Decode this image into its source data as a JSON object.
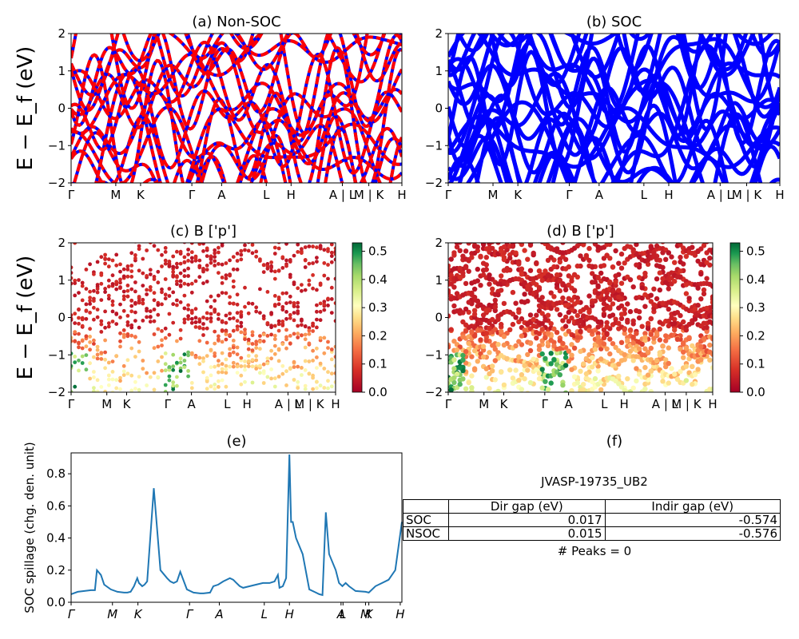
{
  "chart_data": [
    {
      "id": "a",
      "type": "line",
      "title": "(a) Non-SOC",
      "ylabel": "E − E_f (eV)",
      "ylim": [
        -2,
        2
      ],
      "xlim": [
        0,
        1
      ],
      "yticks": [
        -2,
        -1,
        0,
        1,
        2
      ],
      "xtick_labels": [
        {
          "pos": 0.0,
          "label": "Γ"
        },
        {
          "pos": 0.135,
          "label": "M"
        },
        {
          "pos": 0.21,
          "label": "K"
        },
        {
          "pos": 0.365,
          "label": "Γ"
        },
        {
          "pos": 0.455,
          "label": "A"
        },
        {
          "pos": 0.59,
          "label": "L"
        },
        {
          "pos": 0.665,
          "label": "H"
        },
        {
          "pos": 0.82,
          "label": "A | L"
        },
        {
          "pos": 0.9,
          "label": "M | K"
        },
        {
          "pos": 1.0,
          "label": "H"
        }
      ],
      "line_colors": [
        "#0000ff",
        "#ff0000"
      ],
      "line_style": "red dashed over blue"
    },
    {
      "id": "b",
      "type": "line",
      "title": "(b) SOC",
      "ylim": [
        -2,
        2
      ],
      "xlim": [
        0,
        1
      ],
      "yticks": [
        -2,
        -1,
        0,
        1,
        2
      ],
      "xtick_labels": [
        {
          "pos": 0.0,
          "label": "Γ"
        },
        {
          "pos": 0.135,
          "label": "M"
        },
        {
          "pos": 0.21,
          "label": "K"
        },
        {
          "pos": 0.365,
          "label": "Γ"
        },
        {
          "pos": 0.455,
          "label": "A"
        },
        {
          "pos": 0.59,
          "label": "L"
        },
        {
          "pos": 0.665,
          "label": "H"
        },
        {
          "pos": 0.82,
          "label": "A | L"
        },
        {
          "pos": 0.9,
          "label": "M | K"
        },
        {
          "pos": 1.0,
          "label": "H"
        }
      ],
      "line_colors": [
        "#0000ff"
      ]
    },
    {
      "id": "c",
      "type": "scatter",
      "title": "(c)  B ['p']",
      "ylabel": "E − E_f (eV)",
      "ylim": [
        -2,
        2
      ],
      "xlim": [
        0,
        1
      ],
      "yticks": [
        -2,
        -1,
        0,
        1,
        2
      ],
      "xtick_labels": [
        {
          "pos": 0.0,
          "label": "Γ"
        },
        {
          "pos": 0.135,
          "label": "M"
        },
        {
          "pos": 0.21,
          "label": "K"
        },
        {
          "pos": 0.365,
          "label": "Γ"
        },
        {
          "pos": 0.455,
          "label": "A"
        },
        {
          "pos": 0.59,
          "label": "L"
        },
        {
          "pos": 0.665,
          "label": "H"
        },
        {
          "pos": 0.82,
          "label": "A | L"
        },
        {
          "pos": 0.9,
          "label": "M | K"
        },
        {
          "pos": 1.0,
          "label": "H"
        }
      ],
      "colorbar": {
        "range": [
          0,
          0.53
        ],
        "ticks": [
          "0.0",
          "0.1",
          "0.2",
          "0.3",
          "0.4",
          "0.5"
        ],
        "colormap": "RdYlGn"
      }
    },
    {
      "id": "d",
      "type": "scatter",
      "title": "(d) B ['p']",
      "ylim": [
        -2,
        2
      ],
      "xlim": [
        0,
        1
      ],
      "yticks": [
        -2,
        -1,
        0,
        1,
        2
      ],
      "xtick_labels": [
        {
          "pos": 0.0,
          "label": "Γ"
        },
        {
          "pos": 0.135,
          "label": "M"
        },
        {
          "pos": 0.21,
          "label": "K"
        },
        {
          "pos": 0.365,
          "label": "Γ"
        },
        {
          "pos": 0.455,
          "label": "A"
        },
        {
          "pos": 0.59,
          "label": "L"
        },
        {
          "pos": 0.665,
          "label": "H"
        },
        {
          "pos": 0.82,
          "label": "A | L"
        },
        {
          "pos": 0.9,
          "label": "M | K"
        },
        {
          "pos": 1.0,
          "label": "H"
        }
      ],
      "colorbar": {
        "range": [
          0,
          0.53
        ],
        "ticks": [
          "0.0",
          "0.1",
          "0.2",
          "0.3",
          "0.4",
          "0.5"
        ],
        "colormap": "RdYlGn"
      }
    },
    {
      "id": "e",
      "type": "line",
      "title": "(e)",
      "ylabel": "SOC spillage (chg. den. unit)",
      "ylim": [
        0,
        0.93
      ],
      "yticks": [
        "0.0",
        "0.2",
        "0.4",
        "0.6",
        "0.8"
      ],
      "xlim": [
        0,
        1
      ],
      "xtick_labels": [
        {
          "pos": 0.0,
          "label": "Γ"
        },
        {
          "pos": 0.125,
          "label": "M"
        },
        {
          "pos": 0.202,
          "label": "K"
        },
        {
          "pos": 0.358,
          "label": "Γ"
        },
        {
          "pos": 0.448,
          "label": "A"
        },
        {
          "pos": 0.584,
          "label": "L"
        },
        {
          "pos": 0.66,
          "label": "H"
        },
        {
          "pos": 0.816,
          "label": "A"
        },
        {
          "pos": 0.822,
          "label": "L"
        },
        {
          "pos": 0.89,
          "label": "M"
        },
        {
          "pos": 0.9,
          "label": "K"
        },
        {
          "pos": 0.995,
          "label": "H"
        }
      ],
      "series": [
        {
          "color": "#1f77b4",
          "x": [
            0.0,
            0.02,
            0.04,
            0.06,
            0.072,
            0.078,
            0.09,
            0.1,
            0.12,
            0.14,
            0.16,
            0.17,
            0.18,
            0.19,
            0.2,
            0.205,
            0.215,
            0.222,
            0.23,
            0.25,
            0.27,
            0.29,
            0.3,
            0.31,
            0.32,
            0.33,
            0.35,
            0.37,
            0.39,
            0.4,
            0.42,
            0.43,
            0.445,
            0.46,
            0.48,
            0.49,
            0.5,
            0.51,
            0.52,
            0.54,
            0.56,
            0.58,
            0.6,
            0.615,
            0.625,
            0.63,
            0.64,
            0.65,
            0.66,
            0.665,
            0.67,
            0.68,
            0.7,
            0.72,
            0.74,
            0.75,
            0.76,
            0.77,
            0.78,
            0.8,
            0.81,
            0.82,
            0.83,
            0.84,
            0.86,
            0.89,
            0.9,
            0.92,
            0.94,
            0.96,
            0.98,
            1.0
          ],
          "values": [
            0.05,
            0.065,
            0.07,
            0.075,
            0.075,
            0.2,
            0.17,
            0.11,
            0.08,
            0.065,
            0.06,
            0.06,
            0.065,
            0.1,
            0.15,
            0.12,
            0.1,
            0.11,
            0.13,
            0.71,
            0.2,
            0.15,
            0.13,
            0.12,
            0.13,
            0.19,
            0.08,
            0.06,
            0.055,
            0.055,
            0.06,
            0.1,
            0.11,
            0.13,
            0.15,
            0.14,
            0.12,
            0.1,
            0.09,
            0.1,
            0.11,
            0.12,
            0.12,
            0.13,
            0.17,
            0.09,
            0.1,
            0.15,
            0.92,
            0.5,
            0.5,
            0.4,
            0.3,
            0.08,
            0.06,
            0.05,
            0.045,
            0.56,
            0.3,
            0.2,
            0.12,
            0.1,
            0.12,
            0.1,
            0.07,
            0.065,
            0.06,
            0.1,
            0.12,
            0.14,
            0.2,
            0.5
          ]
        }
      ]
    }
  ],
  "table_panel": {
    "title": "(f)",
    "caption": "JVASP-19735_UB2",
    "headers": [
      "",
      "Dir gap (eV)",
      "Indir gap (eV)"
    ],
    "rows": [
      [
        "SOC",
        "0.017",
        "-0.574"
      ],
      [
        "NSOC",
        "0.015",
        "-0.576"
      ]
    ],
    "peaks": "# Peaks = 0"
  }
}
